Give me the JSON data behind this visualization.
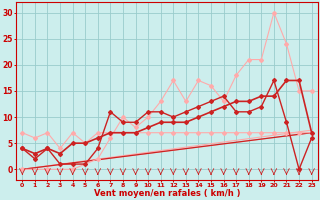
{
  "bg_color": "#cceeed",
  "grid_color": "#99cccc",
  "x_label": "Vent moyen/en rafales ( km/h )",
  "x_ticks": [
    0,
    1,
    2,
    3,
    4,
    5,
    6,
    7,
    8,
    9,
    10,
    11,
    12,
    13,
    14,
    15,
    16,
    17,
    18,
    19,
    20,
    21,
    22,
    23
  ],
  "y_ticks": [
    0,
    5,
    10,
    15,
    20,
    25,
    30
  ],
  "ylim": [
    -2,
    32
  ],
  "xlim": [
    -0.5,
    23.5
  ],
  "series": [
    {
      "x": [
        0,
        1,
        2,
        3,
        4,
        5,
        6,
        7,
        8,
        9,
        10,
        11,
        12,
        13,
        14,
        15,
        16,
        17,
        18,
        19,
        20,
        21,
        22,
        23
      ],
      "y": [
        7,
        6,
        7,
        4,
        7,
        5,
        7,
        7,
        7,
        7,
        7,
        7,
        7,
        7,
        7,
        7,
        7,
        7,
        7,
        7,
        7,
        7,
        7,
        7
      ],
      "color": "#ffaaaa",
      "lw": 0.8,
      "marker": "D",
      "ms": 2
    },
    {
      "x": [
        0,
        2,
        4,
        6,
        7,
        8,
        9,
        10,
        11,
        12,
        13,
        14,
        15,
        16,
        17,
        18,
        19,
        20,
        21,
        22,
        23
      ],
      "y": [
        0,
        0,
        0,
        2,
        6,
        10,
        8,
        10,
        13,
        17,
        13,
        17,
        16,
        13,
        18,
        21,
        21,
        30,
        24,
        15,
        15
      ],
      "color": "#ffaaaa",
      "lw": 0.8,
      "marker": "D",
      "ms": 2
    },
    {
      "x": [
        0,
        23
      ],
      "y": [
        0,
        7
      ],
      "color": "#ffaaaa",
      "lw": 0.8,
      "marker": null,
      "ms": 0
    },
    {
      "x": [
        0,
        23
      ],
      "y": [
        0,
        7.5
      ],
      "color": "#ffaaaa",
      "lw": 0.8,
      "marker": null,
      "ms": 0
    },
    {
      "x": [
        0,
        23
      ],
      "y": [
        0,
        7
      ],
      "color": "#cc2222",
      "lw": 0.9,
      "marker": null,
      "ms": 0
    },
    {
      "x": [
        0,
        1,
        2,
        3,
        4,
        5,
        6,
        7,
        8,
        9,
        10,
        11,
        12,
        13,
        14,
        15,
        16,
        17,
        18,
        19,
        20,
        21,
        22,
        23
      ],
      "y": [
        4,
        2,
        4,
        1,
        1,
        1,
        4,
        11,
        9,
        9,
        11,
        11,
        10,
        11,
        12,
        13,
        14,
        11,
        11,
        12,
        17,
        9,
        0,
        6
      ],
      "color": "#cc2222",
      "lw": 1.0,
      "marker": "D",
      "ms": 2
    },
    {
      "x": [
        0,
        1,
        2,
        3,
        4,
        5,
        6,
        7,
        8,
        9,
        10,
        11,
        12,
        13,
        14,
        15,
        16,
        17,
        18,
        19,
        20,
        21,
        22,
        23
      ],
      "y": [
        4,
        3,
        4,
        3,
        5,
        5,
        6,
        7,
        7,
        7,
        8,
        9,
        9,
        9,
        10,
        11,
        12,
        13,
        13,
        14,
        14,
        17,
        17,
        7
      ],
      "color": "#cc2222",
      "lw": 1.2,
      "marker": "D",
      "ms": 2
    }
  ],
  "wind_arrows": {
    "x": [
      0,
      1,
      2,
      3,
      4,
      5,
      6,
      7,
      8,
      9,
      10,
      11,
      12,
      13,
      14,
      15,
      16,
      17,
      18,
      19,
      20,
      21,
      22,
      23
    ],
    "y_base": -0.8,
    "color": "#cc2222",
    "size": 4
  }
}
